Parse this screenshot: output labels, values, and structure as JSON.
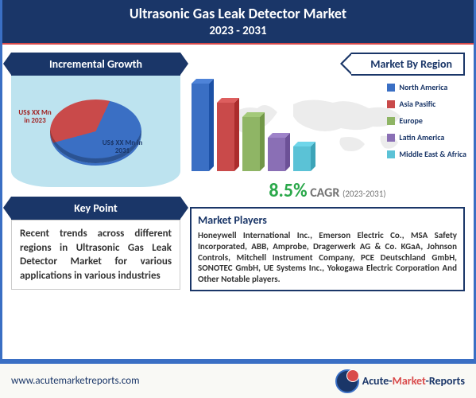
{
  "title": {
    "line1": "Ultrasonic Gas Leak Detector Market",
    "line2": "2023 - 2031"
  },
  "incremental_growth": {
    "header": "Incremental Growth",
    "pie": {
      "type": "pie",
      "slice_2023": {
        "label": "US$ XX Mn in 2023",
        "angle_deg": 130,
        "color": "#c94a4a"
      },
      "slice_2031": {
        "label": "US$ XX Mn in 2031",
        "angle_deg": 230,
        "color": "#3a6fc4"
      },
      "background_color": "#bde3ef"
    }
  },
  "key_point": {
    "header": "Key Point",
    "body": "Recent trends across different regions in Ultrasonic Gas Leak Detector Market for various applications in various industries"
  },
  "market_by_region": {
    "header": "Market By Region",
    "chart": {
      "type": "bar",
      "bars": [
        {
          "label": "North America",
          "value": 100,
          "color": "#3a6fc4"
        },
        {
          "label": "Asia Pasific",
          "value": 78,
          "color": "#c94a4a"
        },
        {
          "label": "Europe",
          "value": 62,
          "color": "#8fb565"
        },
        {
          "label": "Latin America",
          "value": 38,
          "color": "#8a6fb5"
        },
        {
          "label": "Middle East & Africa",
          "value": 28,
          "color": "#5bc2d6"
        }
      ]
    }
  },
  "cagr": {
    "value": "8.5%",
    "label": "CAGR",
    "period": "(2023-2031)"
  },
  "market_players": {
    "header": "Market Players",
    "body": "Honeywell International Inc., Emerson Electric Co., MSA Safety Incorporated, ABB, Amprobe, Dragerwerk AG & Co. KGaA, Johnson Controls, Mitchell Instrument Company, PCE Deutschland GmbH, SONOTEC GmbH, UE Systems Inc., Yokogawa Electric Corporation And Other Notable players."
  },
  "footer": {
    "url": "www.acutemarketreports.com",
    "logo_text_1": "Acute-",
    "logo_text_2": "Market",
    "logo_text_3": "-Reports"
  },
  "colors": {
    "primary": "#1a3668",
    "accent_blue": "#3a6fc4",
    "accent_red": "#d94a4a",
    "cagr_green": "#2aa84a"
  }
}
